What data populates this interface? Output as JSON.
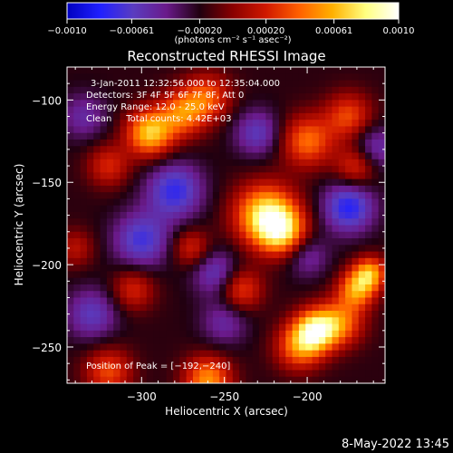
{
  "chart_data": {
    "type": "heatmap",
    "title": "Reconstructed RHESSI Image",
    "xlabel": "Heliocentric X (arcsec)",
    "ylabel": "Heliocentric Y (arcsec)",
    "xlim": [
      -345,
      -153
    ],
    "ylim": [
      -272,
      -80
    ],
    "xticks": [
      -300,
      -250,
      -200
    ],
    "xtick_labels": [
      "−300",
      "−250",
      "−200"
    ],
    "yticks": [
      -100,
      -150,
      -200,
      -250
    ],
    "ytick_labels": [
      "−100",
      "−150",
      "−200",
      "−250"
    ],
    "colorbar": {
      "range": [
        -0.001,
        0.001
      ],
      "ticks": [
        -0.001,
        -0.00061,
        -0.0002,
        0.0002,
        0.00061,
        0.001
      ],
      "tick_labels": [
        "−0.0010",
        "−0.00061",
        "−0.00020",
        "0.00020",
        "0.00061",
        "0.0010"
      ],
      "unit_label": "(photons cm⁻² s⁻¹ asec⁻²)",
      "colors": [
        "#0000c0",
        "#2020ff",
        "#5a3cc0",
        "#6a1a8a",
        "#200010",
        "#8a0000",
        "#d01800",
        "#ff6000",
        "#ffb000",
        "#ffff80",
        "#ffffff"
      ]
    },
    "annotations": [
      "3-Jan-2011 12:32:56.000 to 12:35:04.000",
      "Detectors: 3F 4F 5F 6F 7F 8F, Att 0",
      "Energy Range: 12.0 - 25.0 keV",
      "Clean     Total counts: 4.42E+03"
    ],
    "peak_label": "Position of Peak = [−192,−240]",
    "peak": [
      -192,
      -240
    ],
    "sources": [
      {
        "x": -225,
        "y": -170,
        "amplitude": 0.00095,
        "sigma": 13
      },
      {
        "x": -215,
        "y": -180,
        "amplitude": 0.0007,
        "sigma": 10
      },
      {
        "x": -195,
        "y": -240,
        "amplitude": 0.0009,
        "sigma": 9
      },
      {
        "x": -180,
        "y": -235,
        "amplitude": 0.0006,
        "sigma": 10
      },
      {
        "x": -170,
        "y": -215,
        "amplitude": 0.0007,
        "sigma": 8
      },
      {
        "x": -162,
        "y": -205,
        "amplitude": 0.0007,
        "sigma": 7
      },
      {
        "x": -205,
        "y": -250,
        "amplitude": 0.0006,
        "sigma": 10
      },
      {
        "x": -260,
        "y": -270,
        "amplitude": 0.0007,
        "sigma": 10
      },
      {
        "x": -320,
        "y": -265,
        "amplitude": 0.0005,
        "sigma": 10
      },
      {
        "x": -295,
        "y": -120,
        "amplitude": 0.00085,
        "sigma": 10
      },
      {
        "x": -275,
        "y": -108,
        "amplitude": 0.0006,
        "sigma": 10
      },
      {
        "x": -260,
        "y": -98,
        "amplitude": 0.0005,
        "sigma": 10
      },
      {
        "x": -200,
        "y": -125,
        "amplitude": 0.0006,
        "sigma": 11
      },
      {
        "x": -175,
        "y": -110,
        "amplitude": 0.0005,
        "sigma": 10
      },
      {
        "x": -170,
        "y": -140,
        "amplitude": 0.0005,
        "sigma": 9
      },
      {
        "x": -240,
        "y": -215,
        "amplitude": 0.0005,
        "sigma": 9
      },
      {
        "x": -320,
        "y": -140,
        "amplitude": 0.0004,
        "sigma": 9
      },
      {
        "x": -305,
        "y": -215,
        "amplitude": 0.0004,
        "sigma": 9
      },
      {
        "x": -340,
        "y": -190,
        "amplitude": 0.0003,
        "sigma": 8
      },
      {
        "x": -270,
        "y": -190,
        "amplitude": 0.0004,
        "sigma": 8
      },
      {
        "x": -280,
        "y": -155,
        "amplitude": -0.00055,
        "sigma": 12
      },
      {
        "x": -300,
        "y": -185,
        "amplitude": -0.0005,
        "sigma": 12
      },
      {
        "x": -330,
        "y": -230,
        "amplitude": -0.0004,
        "sigma": 11
      },
      {
        "x": -255,
        "y": -205,
        "amplitude": -0.0004,
        "sigma": 10
      },
      {
        "x": -250,
        "y": -235,
        "amplitude": -0.0003,
        "sigma": 10
      },
      {
        "x": -175,
        "y": -165,
        "amplitude": -0.0006,
        "sigma": 11
      },
      {
        "x": -160,
        "y": -130,
        "amplitude": -0.0004,
        "sigma": 10
      },
      {
        "x": -230,
        "y": -120,
        "amplitude": -0.0004,
        "sigma": 10
      },
      {
        "x": -335,
        "y": -110,
        "amplitude": -0.0003,
        "sigma": 10
      },
      {
        "x": -200,
        "y": -195,
        "amplitude": -0.0003,
        "sigma": 9
      }
    ],
    "background": -0.00018,
    "grid": false
  },
  "footer_timestamp": "8-May-2022 13:45"
}
